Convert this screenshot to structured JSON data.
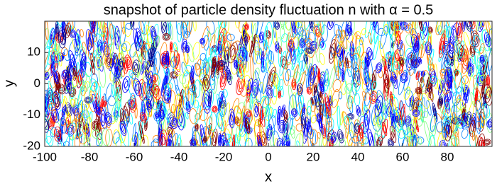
{
  "chart_data": {
    "type": "contour",
    "title": "snapshot of particle density fluctuation n with α = 0.5",
    "x_label": "x",
    "y_label": "y",
    "xlim": [
      -100,
      100
    ],
    "ylim": [
      -20,
      20
    ],
    "xticks": [
      -100,
      -80,
      -60,
      -40,
      -20,
      0,
      20,
      40,
      60,
      80
    ],
    "yticks": [
      -20,
      -10,
      0,
      10
    ],
    "colormap": [
      "#00008f",
      "#0000ff",
      "#0080ff",
      "#00ffff",
      "#80ff80",
      "#ffff00",
      "#ff8000",
      "#ff0000",
      "#800000"
    ]
  }
}
